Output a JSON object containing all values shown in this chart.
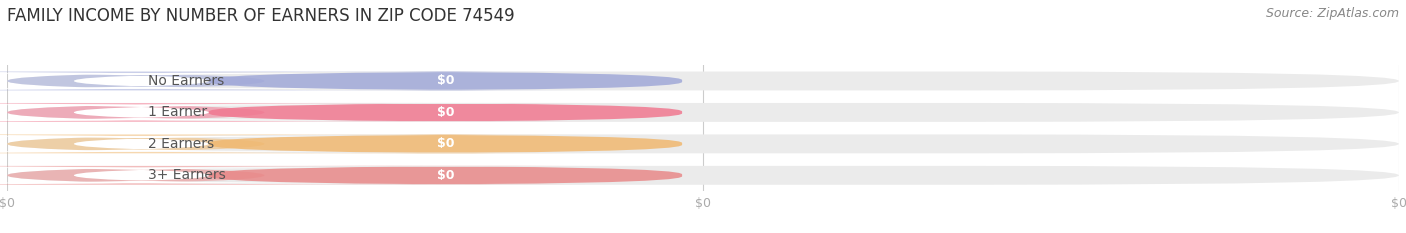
{
  "title": "FAMILY INCOME BY NUMBER OF EARNERS IN ZIP CODE 74549",
  "source": "Source: ZipAtlas.com",
  "categories": [
    "No Earners",
    "1 Earner",
    "2 Earners",
    "3+ Earners"
  ],
  "values": [
    0,
    0,
    0,
    0
  ],
  "bar_colors": [
    "#a0a8d8",
    "#f07890",
    "#f0b870",
    "#e88888"
  ],
  "value_labels": [
    "$0",
    "$0",
    "$0",
    "$0"
  ],
  "x_tick_labels": [
    "$0",
    "$0",
    "$0"
  ],
  "x_tick_positions": [
    0.0,
    0.5,
    1.0
  ],
  "xlim": [
    0.0,
    1.0
  ],
  "background_color": "#ffffff",
  "bar_bg_color": "#ebebeb",
  "white_pill_color": "#ffffff",
  "title_fontsize": 12,
  "source_fontsize": 9,
  "label_fontsize": 10,
  "value_fontsize": 9,
  "bar_height": 0.6,
  "tick_label_color": "#aaaaaa",
  "grid_color": "#cccccc",
  "label_text_color": "#555555",
  "value_text_color": "#ffffff"
}
